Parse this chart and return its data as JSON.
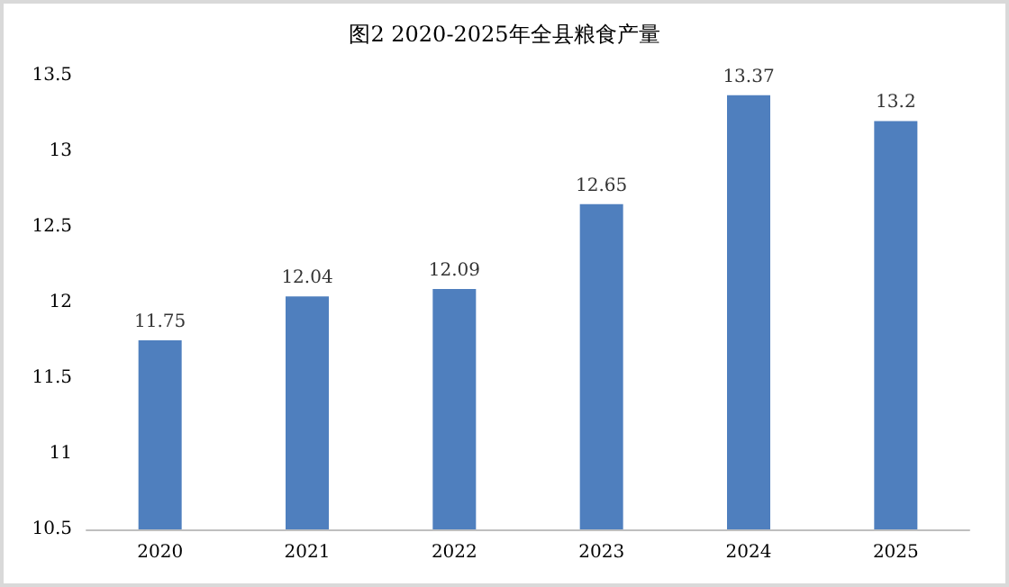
{
  "chart_data": {
    "type": "bar",
    "title": "图2 2020-2025年全县粮食产量",
    "categories": [
      "2020",
      "2021",
      "2022",
      "2023",
      "2024",
      "2025"
    ],
    "values": [
      11.75,
      12.04,
      12.09,
      12.65,
      13.37,
      13.2
    ],
    "color": "#4f7fbe",
    "ylim": [
      10.5,
      13.5
    ],
    "yticks": [
      10.5,
      11,
      11.5,
      12,
      12.5,
      13,
      13.5
    ],
    "data_labels": true
  }
}
